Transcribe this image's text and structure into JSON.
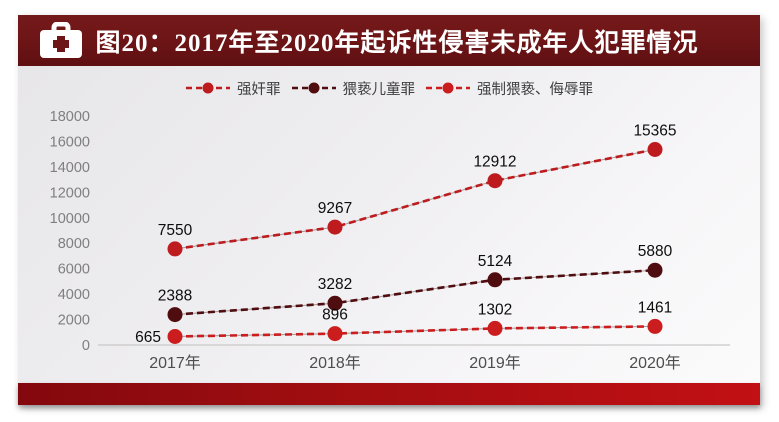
{
  "header": {
    "figure_label": "图20",
    "title": "图20：2017年至2020年起诉性侵害未成年人犯罪情况",
    "icon": "first-aid-kit-icon",
    "bg_color": "#6E1517",
    "text_color": "#FFFFFF"
  },
  "chart_data": {
    "type": "line",
    "title": "2017年至2020年起诉性侵害未成年人犯罪情况",
    "categories": [
      "2017年",
      "2018年",
      "2019年",
      "2020年"
    ],
    "series": [
      {
        "name": "强奸罪",
        "values": [
          7550,
          9267,
          12912,
          15365
        ],
        "color": "#be1b1e"
      },
      {
        "name": "猥亵儿童罪",
        "values": [
          2388,
          3282,
          5124,
          5880
        ],
        "color": "#4f0d10"
      },
      {
        "name": "强制猥亵、侮辱罪",
        "values": [
          665,
          896,
          1302,
          1461
        ],
        "color": "#cb1d1d"
      }
    ],
    "ylim": [
      0,
      18000
    ],
    "ytick_step": 2000,
    "yticks": [
      0,
      2000,
      4000,
      6000,
      8000,
      10000,
      12000,
      14000,
      16000,
      18000
    ],
    "grid": false,
    "legend_position": "top",
    "line_style": "dashed",
    "marker": "circle",
    "data_labels": true
  },
  "colors": {
    "header_bg": "#6E1517",
    "chart_bg": "#EDECEE",
    "footer_bar_left": "#83080E",
    "footer_bar_right": "#C21014",
    "y_axis_label": "#7f7f7f",
    "x_axis_label": "#4d4d4d",
    "data_label": "#0d0d0d",
    "axis_line": "#c9c9c9"
  }
}
